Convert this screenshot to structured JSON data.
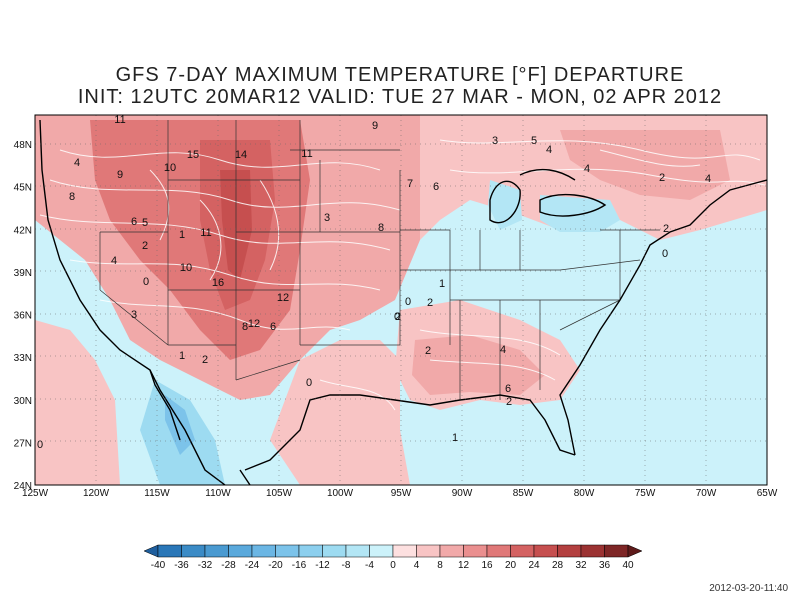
{
  "title": {
    "line1": "GFS 7-DAY MAXIMUM TEMPERATURE [°F] DEPARTURE",
    "line2": "INIT: 12UTC 20MAR12  VALID: TUE 27 MAR -  MON, 02 APR 2012"
  },
  "axes": {
    "lon_labels": [
      "125W",
      "120W",
      "115W",
      "110W",
      "105W",
      "100W",
      "95W",
      "90W",
      "85W",
      "80W",
      "75W",
      "70W",
      "65W"
    ],
    "lat_labels": [
      "48N",
      "45N",
      "42N",
      "39N",
      "36N",
      "33N",
      "30N",
      "27N",
      "24N"
    ]
  },
  "colorbar": {
    "labels": [
      "-40",
      "-36",
      "-32",
      "-28",
      "-24",
      "-20",
      "-16",
      "-12",
      "-8",
      "-4",
      "0",
      "4",
      "8",
      "12",
      "16",
      "20",
      "24",
      "28",
      "32",
      "36",
      "40"
    ],
    "colors": [
      "#2a77b8",
      "#3b8bc6",
      "#4a9ad1",
      "#5aa9dc",
      "#6bb6e4",
      "#7cc3ea",
      "#8ccfee",
      "#9ddbf1",
      "#b3e6f5",
      "#ccf2fa",
      "#fde0e0",
      "#f8c4c4",
      "#f1a9a9",
      "#ea8f8f",
      "#e07878",
      "#d46262",
      "#c64f4f",
      "#b33f3f",
      "#9b3232",
      "#7e2626"
    ]
  },
  "contour_labels": [
    {
      "text": "11"
    },
    {
      "text": "15"
    },
    {
      "text": "14"
    },
    {
      "text": "11"
    },
    {
      "text": "9"
    },
    {
      "text": "4"
    },
    {
      "text": "9"
    },
    {
      "text": "10"
    },
    {
      "text": "8"
    },
    {
      "text": "6"
    },
    {
      "text": "5"
    },
    {
      "text": "2"
    },
    {
      "text": "11"
    },
    {
      "text": "1"
    },
    {
      "text": "4"
    },
    {
      "text": "10"
    },
    {
      "text": "0"
    },
    {
      "text": "16"
    },
    {
      "text": "3"
    },
    {
      "text": "12"
    },
    {
      "text": "8"
    },
    {
      "text": "6"
    },
    {
      "text": "12"
    },
    {
      "text": "3"
    },
    {
      "text": "8"
    },
    {
      "text": "7"
    },
    {
      "text": "6"
    },
    {
      "text": "3"
    },
    {
      "text": "5"
    },
    {
      "text": "4"
    },
    {
      "text": "4"
    },
    {
      "text": "4"
    },
    {
      "text": "2"
    },
    {
      "text": "2"
    },
    {
      "text": "0"
    },
    {
      "text": "0"
    },
    {
      "text": "2"
    },
    {
      "text": "2"
    },
    {
      "text": "1"
    },
    {
      "text": "2"
    },
    {
      "text": "0"
    },
    {
      "text": "1"
    },
    {
      "text": "2"
    },
    {
      "text": "4"
    },
    {
      "text": "6"
    },
    {
      "text": "2"
    },
    {
      "text": "1"
    },
    {
      "text": "0"
    },
    {
      "text": "0"
    }
  ],
  "timestamp": "2012-03-20-11:40"
}
